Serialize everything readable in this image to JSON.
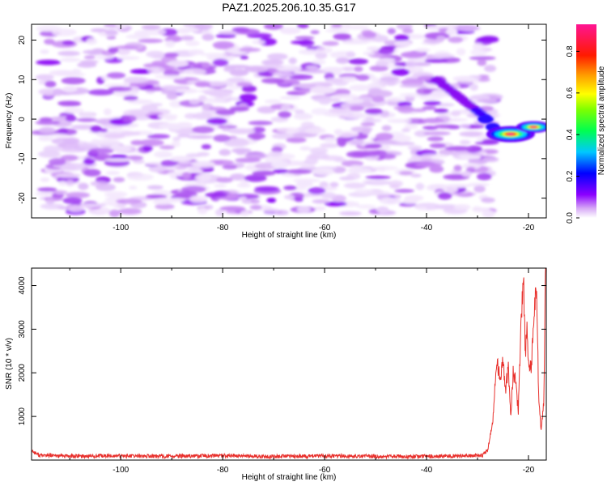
{
  "figure": {
    "title": "PAZ1.2025.206.10.35.G17"
  },
  "chart_data": [
    {
      "type": "heatmap",
      "xlabel": "Height of straight line (km)",
      "ylabel": "Frequency (Hz)",
      "xlim": [
        -117.5,
        -16.5
      ],
      "ylim": [
        -25,
        24
      ],
      "xticks": [
        -100,
        -80,
        -60,
        -40,
        -20
      ],
      "yticks": [
        -20,
        -10,
        0,
        10,
        20
      ],
      "colorbar": {
        "label": "Normalized spectral amplitude",
        "range": [
          0,
          0.93
        ],
        "ticks": [
          0.0,
          0.2,
          0.4,
          0.6,
          0.8
        ],
        "colormap": "rainbow-pink (white at 0, purple, blue, cyan, green, yellow, orange, red, pink)"
      },
      "features": [
        {
          "x_range": [
            -115,
            -27
          ],
          "y_range": [
            -24,
            24
          ],
          "amplitude": "low (0.02-0.15)",
          "pattern": "scattered noise blobs"
        },
        {
          "x_range": [
            -38,
            -28
          ],
          "y_from": 10,
          "y_to": 0,
          "amplitude": "0.15-0.30",
          "pattern": "band descending toward signal"
        },
        {
          "x_center": -23.5,
          "y_center": -3.8,
          "amplitude": 0.93,
          "pattern": "main tone"
        },
        {
          "x_center": -19,
          "y_center": -2,
          "amplitude": 0.9,
          "pattern": "tone continuation"
        }
      ]
    },
    {
      "type": "line",
      "xlabel": "Height of straight line (km)",
      "ylabel": "SNR (10 * v/v)",
      "xlim": [
        -117.5,
        -16.5
      ],
      "ylim": [
        0,
        4400
      ],
      "xticks": [
        -100,
        -80,
        -60,
        -40,
        -20
      ],
      "yticks": [
        1000,
        2000,
        3000,
        4000
      ],
      "series": [
        {
          "color": "#e8302c",
          "x": [
            -117.5,
            -116,
            -110,
            -100,
            -90,
            -80,
            -70,
            -60,
            -50,
            -40,
            -32,
            -29,
            -28,
            -27,
            -26.5,
            -26,
            -25.5,
            -25,
            -24.5,
            -24,
            -23.5,
            -23,
            -22.5,
            -22,
            -21.5,
            -21,
            -20.6,
            -20.3,
            -20,
            -19.5,
            -19,
            -18.7,
            -18.4,
            -18.2,
            -18,
            -17.5,
            -17,
            -16.7,
            -16.5
          ],
          "values": [
            220,
            110,
            90,
            95,
            85,
            100,
            80,
            95,
            85,
            90,
            95,
            110,
            220,
            900,
            1800,
            2200,
            1700,
            2400,
            1500,
            2200,
            1000,
            2000,
            1800,
            1100,
            3000,
            4250,
            2400,
            3100,
            2200,
            2100,
            3000,
            3600,
            4000,
            2700,
            1400,
            700,
            1300,
            4000,
            4350
          ]
        }
      ]
    }
  ]
}
